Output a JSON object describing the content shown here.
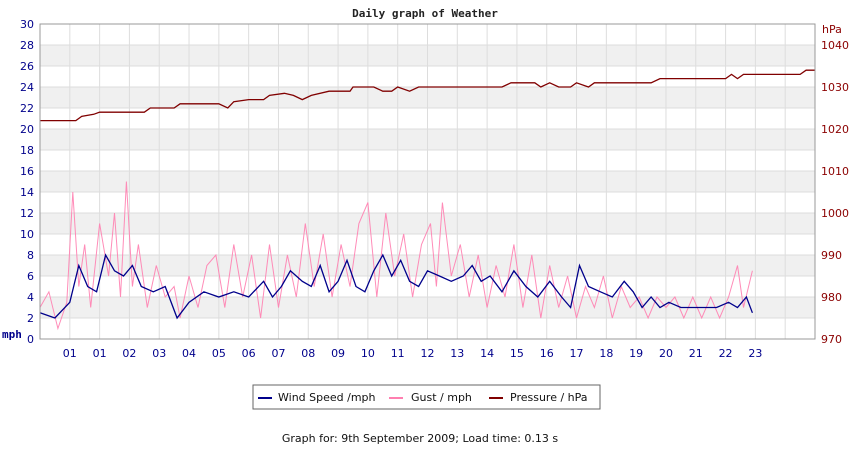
{
  "chart_data": {
    "type": "line",
    "title": "Daily graph of Weather",
    "footer": "Graph for: 9th September 2009; Load time: 0.13 s",
    "x_tick_labels": [
      "01",
      "01",
      "02",
      "03",
      "04",
      "05",
      "06",
      "07",
      "08",
      "09",
      "10",
      "11",
      "12",
      "13",
      "14",
      "15",
      "16",
      "17",
      "18",
      "19",
      "20",
      "21",
      "22",
      "23"
    ],
    "y_left": {
      "unit": "mph",
      "range": [
        0,
        30
      ],
      "ticks": [
        "0",
        "2",
        "4",
        "6",
        "8",
        "10",
        "12",
        "14",
        "16",
        "18",
        "20",
        "22",
        "24",
        "26",
        "28",
        "30"
      ]
    },
    "y_right": {
      "unit": "hPa",
      "range": [
        970,
        1045
      ],
      "ticks": [
        "970",
        "980",
        "990",
        "1000",
        "1010",
        "1020",
        "1030",
        "1040"
      ]
    },
    "grid": true,
    "legend_position": "bottom-center",
    "series": [
      {
        "name": "Wind Speed /mph",
        "axis": "left",
        "color": "#00008b",
        "x_unit": "hour",
        "points": [
          [
            0.0,
            2.5
          ],
          [
            0.5,
            2.0
          ],
          [
            1.0,
            3.5
          ],
          [
            1.3,
            7.0
          ],
          [
            1.6,
            5.0
          ],
          [
            1.9,
            4.5
          ],
          [
            2.2,
            8.0
          ],
          [
            2.5,
            6.5
          ],
          [
            2.8,
            6.0
          ],
          [
            3.1,
            7.0
          ],
          [
            3.4,
            5.0
          ],
          [
            3.8,
            4.5
          ],
          [
            4.2,
            5.0
          ],
          [
            4.6,
            2.0
          ],
          [
            5.0,
            3.5
          ],
          [
            5.5,
            4.5
          ],
          [
            6.0,
            4.0
          ],
          [
            6.5,
            4.5
          ],
          [
            7.0,
            4.0
          ],
          [
            7.5,
            5.5
          ],
          [
            7.8,
            4.0
          ],
          [
            8.1,
            5.0
          ],
          [
            8.4,
            6.5
          ],
          [
            8.8,
            5.5
          ],
          [
            9.1,
            5.0
          ],
          [
            9.4,
            7.0
          ],
          [
            9.7,
            4.5
          ],
          [
            10.0,
            5.5
          ],
          [
            10.3,
            7.5
          ],
          [
            10.6,
            5.0
          ],
          [
            10.9,
            4.5
          ],
          [
            11.2,
            6.5
          ],
          [
            11.5,
            8.0
          ],
          [
            11.8,
            6.0
          ],
          [
            12.1,
            7.5
          ],
          [
            12.4,
            5.5
          ],
          [
            12.7,
            5.0
          ],
          [
            13.0,
            6.5
          ],
          [
            13.4,
            6.0
          ],
          [
            13.8,
            5.5
          ],
          [
            14.2,
            6.0
          ],
          [
            14.5,
            7.0
          ],
          [
            14.8,
            5.5
          ],
          [
            15.1,
            6.0
          ],
          [
            15.5,
            4.5
          ],
          [
            15.9,
            6.5
          ],
          [
            16.3,
            5.0
          ],
          [
            16.7,
            4.0
          ],
          [
            17.1,
            5.5
          ],
          [
            17.5,
            4.0
          ],
          [
            17.8,
            3.0
          ],
          [
            18.1,
            7.0
          ],
          [
            18.4,
            5.0
          ],
          [
            18.8,
            4.5
          ],
          [
            19.2,
            4.0
          ],
          [
            19.6,
            5.5
          ],
          [
            19.9,
            4.5
          ],
          [
            20.2,
            3.0
          ],
          [
            20.5,
            4.0
          ],
          [
            20.8,
            3.0
          ],
          [
            21.1,
            3.5
          ],
          [
            21.5,
            3.0
          ],
          [
            21.9,
            3.0
          ],
          [
            22.3,
            3.0
          ],
          [
            22.7,
            3.0
          ],
          [
            23.1,
            3.5
          ],
          [
            23.4,
            3.0
          ],
          [
            23.7,
            4.0
          ],
          [
            23.9,
            2.5
          ]
        ]
      },
      {
        "name": "Gust / mph",
        "axis": "left",
        "color": "#ff7fb0",
        "x_unit": "hour",
        "points": [
          [
            0.0,
            3.0
          ],
          [
            0.3,
            4.5
          ],
          [
            0.6,
            1.0
          ],
          [
            0.9,
            3.5
          ],
          [
            1.1,
            14.0
          ],
          [
            1.3,
            5.0
          ],
          [
            1.5,
            9.0
          ],
          [
            1.7,
            3.0
          ],
          [
            2.0,
            11.0
          ],
          [
            2.3,
            6.0
          ],
          [
            2.5,
            12.0
          ],
          [
            2.7,
            4.0
          ],
          [
            2.9,
            15.0
          ],
          [
            3.1,
            5.0
          ],
          [
            3.3,
            9.0
          ],
          [
            3.6,
            3.0
          ],
          [
            3.9,
            7.0
          ],
          [
            4.2,
            4.0
          ],
          [
            4.5,
            5.0
          ],
          [
            4.7,
            2.0
          ],
          [
            5.0,
            6.0
          ],
          [
            5.3,
            3.0
          ],
          [
            5.6,
            7.0
          ],
          [
            5.9,
            8.0
          ],
          [
            6.2,
            3.0
          ],
          [
            6.5,
            9.0
          ],
          [
            6.8,
            4.0
          ],
          [
            7.1,
            8.0
          ],
          [
            7.4,
            2.0
          ],
          [
            7.7,
            9.0
          ],
          [
            8.0,
            3.0
          ],
          [
            8.3,
            8.0
          ],
          [
            8.6,
            4.0
          ],
          [
            8.9,
            11.0
          ],
          [
            9.2,
            5.0
          ],
          [
            9.5,
            10.0
          ],
          [
            9.8,
            4.0
          ],
          [
            10.1,
            9.0
          ],
          [
            10.4,
            5.0
          ],
          [
            10.7,
            11.0
          ],
          [
            11.0,
            13.0
          ],
          [
            11.3,
            4.0
          ],
          [
            11.6,
            12.0
          ],
          [
            11.9,
            6.0
          ],
          [
            12.2,
            10.0
          ],
          [
            12.5,
            4.0
          ],
          [
            12.8,
            9.0
          ],
          [
            13.1,
            11.0
          ],
          [
            13.3,
            5.0
          ],
          [
            13.5,
            13.0
          ],
          [
            13.8,
            6.0
          ],
          [
            14.1,
            9.0
          ],
          [
            14.4,
            4.0
          ],
          [
            14.7,
            8.0
          ],
          [
            15.0,
            3.0
          ],
          [
            15.3,
            7.0
          ],
          [
            15.6,
            4.0
          ],
          [
            15.9,
            9.0
          ],
          [
            16.2,
            3.0
          ],
          [
            16.5,
            8.0
          ],
          [
            16.8,
            2.0
          ],
          [
            17.1,
            7.0
          ],
          [
            17.4,
            3.0
          ],
          [
            17.7,
            6.0
          ],
          [
            18.0,
            2.0
          ],
          [
            18.3,
            5.0
          ],
          [
            18.6,
            3.0
          ],
          [
            18.9,
            6.0
          ],
          [
            19.2,
            2.0
          ],
          [
            19.5,
            5.0
          ],
          [
            19.8,
            3.0
          ],
          [
            20.1,
            4.0
          ],
          [
            20.4,
            2.0
          ],
          [
            20.7,
            4.0
          ],
          [
            21.0,
            3.0
          ],
          [
            21.3,
            4.0
          ],
          [
            21.6,
            2.0
          ],
          [
            21.9,
            4.0
          ],
          [
            22.2,
            2.0
          ],
          [
            22.5,
            4.0
          ],
          [
            22.8,
            2.0
          ],
          [
            23.1,
            4.0
          ],
          [
            23.4,
            7.0
          ],
          [
            23.6,
            3.0
          ],
          [
            23.9,
            6.5
          ]
        ]
      },
      {
        "name": "Pressure / hPa",
        "axis": "right",
        "color": "#800000",
        "x_unit": "hour",
        "points": [
          [
            0.0,
            1022.0
          ],
          [
            1.2,
            1022.0
          ],
          [
            1.4,
            1023.0
          ],
          [
            1.8,
            1023.5
          ],
          [
            2.0,
            1024.0
          ],
          [
            3.5,
            1024.0
          ],
          [
            3.7,
            1025.0
          ],
          [
            4.5,
            1025.0
          ],
          [
            4.7,
            1026.0
          ],
          [
            6.0,
            1026.0
          ],
          [
            6.3,
            1025.0
          ],
          [
            6.5,
            1026.5
          ],
          [
            7.0,
            1027.0
          ],
          [
            7.5,
            1027.0
          ],
          [
            7.7,
            1028.0
          ],
          [
            8.2,
            1028.5
          ],
          [
            8.5,
            1028.0
          ],
          [
            8.8,
            1027.0
          ],
          [
            9.1,
            1028.0
          ],
          [
            9.7,
            1029.0
          ],
          [
            10.4,
            1029.0
          ],
          [
            10.5,
            1030.0
          ],
          [
            11.2,
            1030.0
          ],
          [
            11.5,
            1029.0
          ],
          [
            11.8,
            1029.0
          ],
          [
            12.0,
            1030.0
          ],
          [
            12.4,
            1029.0
          ],
          [
            12.7,
            1030.0
          ],
          [
            15.5,
            1030.0
          ],
          [
            15.8,
            1031.0
          ],
          [
            16.6,
            1031.0
          ],
          [
            16.8,
            1030.0
          ],
          [
            17.1,
            1031.0
          ],
          [
            17.4,
            1030.0
          ],
          [
            17.8,
            1030.0
          ],
          [
            18.0,
            1031.0
          ],
          [
            18.4,
            1030.0
          ],
          [
            18.6,
            1031.0
          ],
          [
            20.5,
            1031.0
          ],
          [
            20.8,
            1032.0
          ],
          [
            23.0,
            1032.0
          ],
          [
            23.2,
            1033.0
          ],
          [
            23.4,
            1032.0
          ],
          [
            23.6,
            1033.0
          ],
          [
            25.5,
            1033.0
          ],
          [
            25.7,
            1034.0
          ],
          [
            26.0,
            1034.0
          ]
        ]
      }
    ]
  }
}
